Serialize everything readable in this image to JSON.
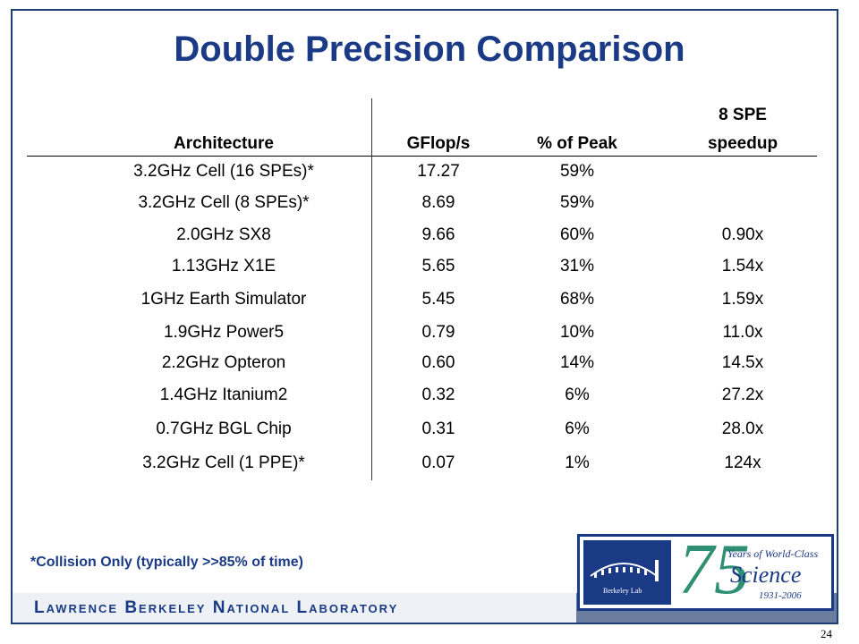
{
  "slide": {
    "title": "Double Precision Comparison",
    "footnote": "*Collision Only (typically >>85% of time)",
    "lab_name": "Lawrence Berkeley National Laboratory",
    "page_number": "24"
  },
  "logo": {
    "lab": "Berkeley Lab",
    "number": "75",
    "tagline": "Years of World-Class",
    "word": "Science",
    "dates": "1931-2006"
  },
  "table": {
    "headers": {
      "architecture": "Architecture",
      "gflops": "GFlop/s",
      "peak": "% of Peak",
      "speedup_line1": "8 SPE",
      "speedup_line2": "speedup"
    },
    "rows": [
      {
        "arch": "3.2GHz Cell (16 SPEs)*",
        "gflops": "17.27",
        "peak": "59%",
        "speedup": ""
      },
      {
        "arch": "3.2GHz Cell (8 SPEs)*",
        "gflops": "8.69",
        "peak": "59%",
        "speedup": ""
      },
      {
        "arch": "2.0GHz SX8",
        "gflops": "9.66",
        "peak": "60%",
        "speedup": "0.90x"
      },
      {
        "arch": "1.13GHz X1E",
        "gflops": "5.65",
        "peak": "31%",
        "speedup": "1.54x"
      },
      {
        "arch": "1GHz Earth Simulator",
        "gflops": "5.45",
        "peak": "68%",
        "speedup": "1.59x"
      },
      {
        "arch": "1.9GHz Power5",
        "gflops": "0.79",
        "peak": "10%",
        "speedup": "11.0x"
      },
      {
        "arch": "2.2GHz Opteron",
        "gflops": "0.60",
        "peak": "14%",
        "speedup": "14.5x"
      },
      {
        "arch": "1.4GHz Itanium2",
        "gflops": "0.32",
        "peak": "6%",
        "speedup": "27.2x"
      },
      {
        "arch": "0.7GHz BGL Chip",
        "gflops": "0.31",
        "peak": "6%",
        "speedup": "28.0x"
      },
      {
        "arch": "3.2GHz Cell (1 PPE)*",
        "gflops": "0.07",
        "peak": "1%",
        "speedup": "124x"
      }
    ]
  },
  "colors": {
    "title": "#1a3a85",
    "frame": "#1e3f78",
    "lab_bar": "#6b7ea0"
  }
}
